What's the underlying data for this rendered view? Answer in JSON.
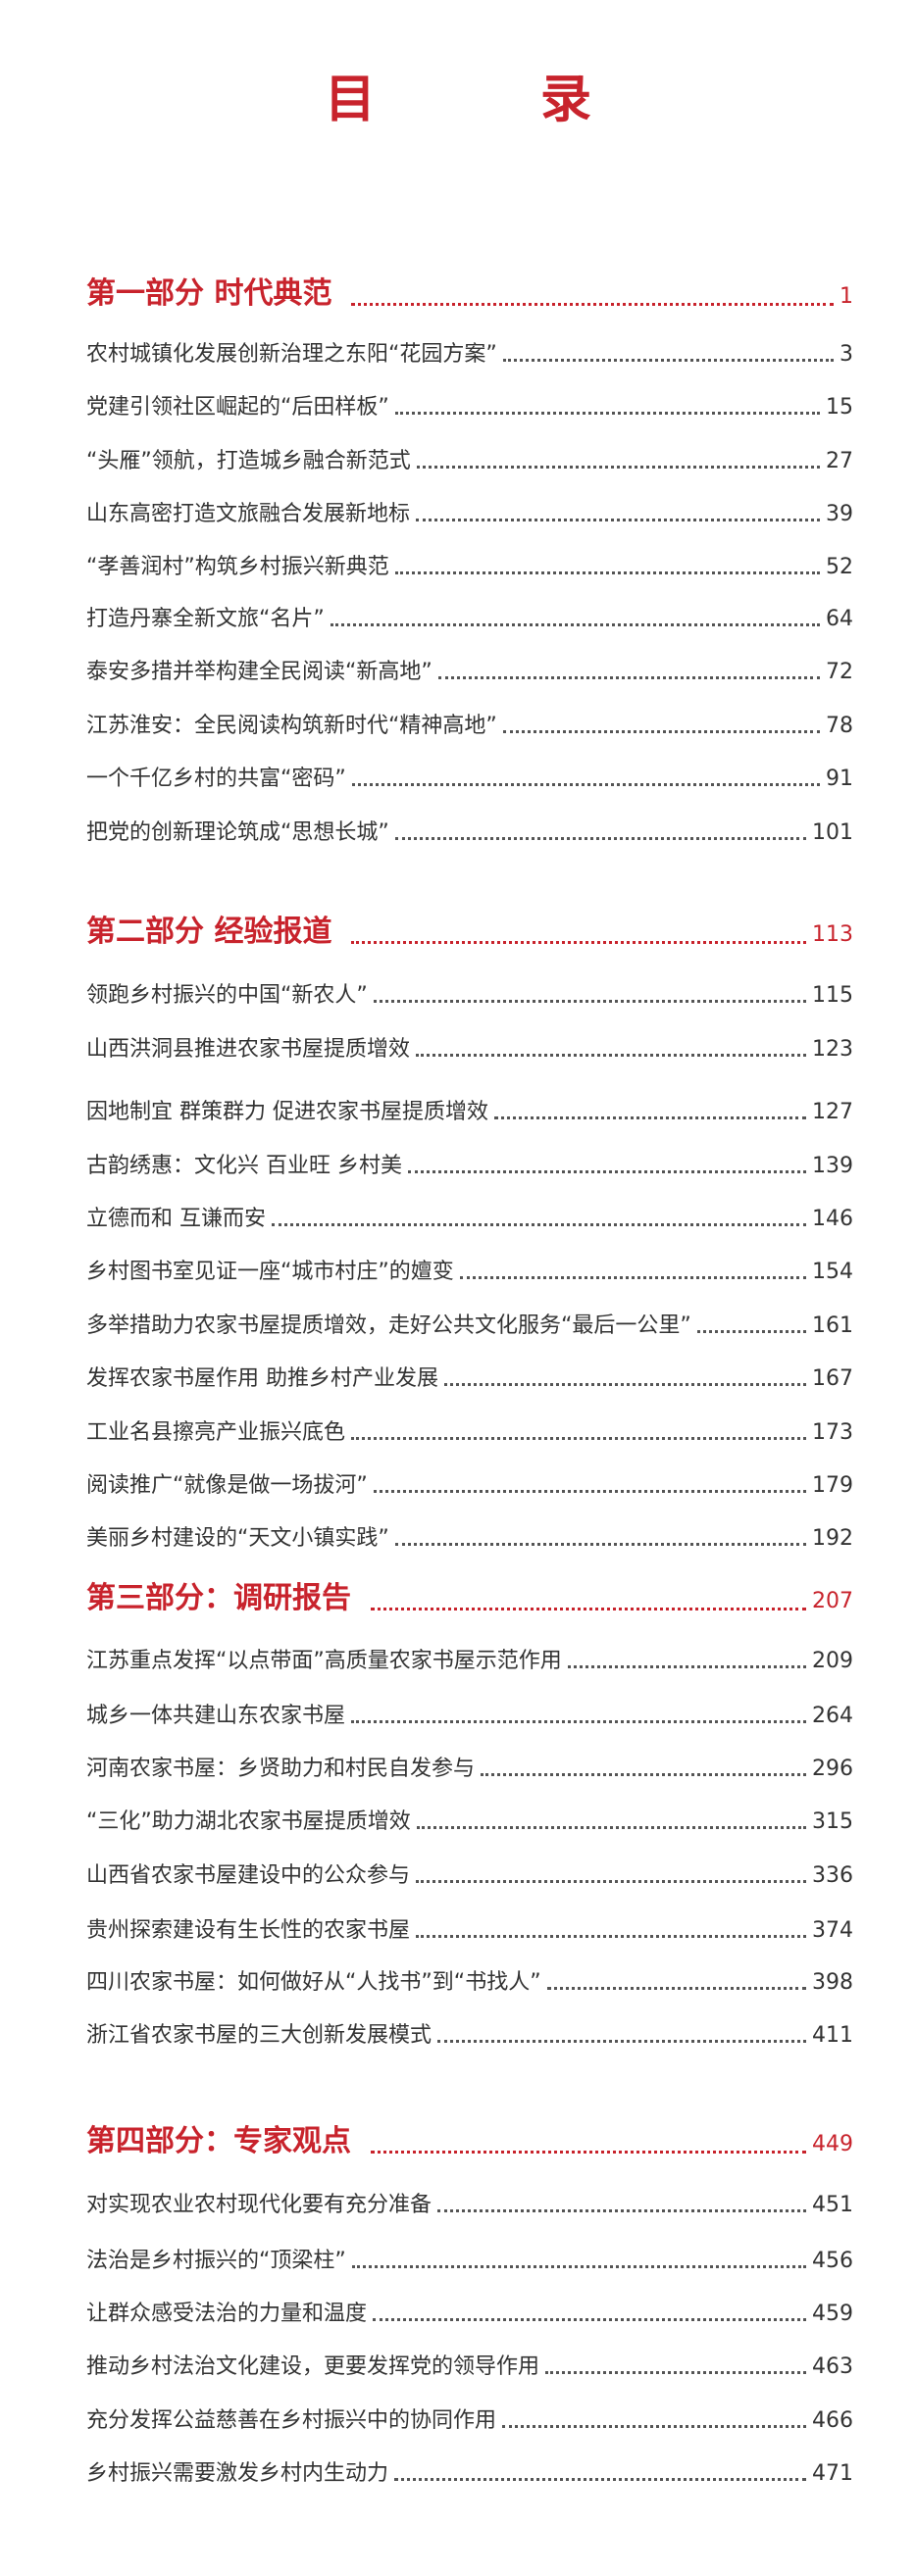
{
  "title": "目　录",
  "colors": {
    "accent": "#c8232c",
    "text": "#333333"
  },
  "sections": [
    {
      "heading": "第一部分 时代典范",
      "page": "1",
      "items": [
        {
          "label": "农村城镇化发展创新治理之东阳“花园方案”",
          "page": "3"
        },
        {
          "label": "党建引领社区崛起的“后田样板”",
          "page": "15"
        },
        {
          "label": "“头雁”领航，打造城乡融合新范式",
          "page": "27"
        },
        {
          "label": "山东高密打造文旅融合发展新地标",
          "page": "39"
        },
        {
          "label": "“孝善润村”构筑乡村振兴新典范",
          "page": "52"
        },
        {
          "label": "打造丹寨全新文旅“名片”",
          "page": "64"
        },
        {
          "label": "泰安多措并举构建全民阅读“新高地”",
          "page": "72"
        },
        {
          "label": "江苏淮安：全民阅读构筑新时代“精神高地”",
          "page": "78"
        },
        {
          "label": "一个千亿乡村的共富“密码”",
          "page": "91"
        },
        {
          "label": "把党的创新理论筑成“思想长城”",
          "page": "101"
        }
      ]
    },
    {
      "heading": "第二部分 经验报道",
      "page": "113",
      "items": [
        {
          "label": "领跑乡村振兴的中国“新农人”",
          "page": "115"
        },
        {
          "label": "山西洪洞县推进农家书屋提质增效",
          "page": "123"
        },
        {
          "label": "因地制宜 群策群力 促进农家书屋提质增效",
          "page": "127"
        },
        {
          "label": "古韵绣惠：文化兴 百业旺 乡村美",
          "page": "139"
        },
        {
          "label": "立德而和 互谦而安",
          "page": "146"
        },
        {
          "label": "乡村图书室见证一座“城市村庄”的嬗变",
          "page": "154"
        },
        {
          "label": "多举措助力农家书屋提质增效，走好公共文化服务“最后一公里”",
          "page": "161"
        },
        {
          "label": "发挥农家书屋作用 助推乡村产业发展",
          "page": "167"
        },
        {
          "label": "工业名县擦亮产业振兴底色",
          "page": "173"
        },
        {
          "label": "阅读推广“就像是做一场拔河”",
          "page": "179"
        },
        {
          "label": "美丽乡村建设的“天文小镇实践”",
          "page": "192"
        }
      ]
    },
    {
      "heading": "第三部分：调研报告",
      "page": "207",
      "items": [
        {
          "label": "江苏重点发挥“以点带面”高质量农家书屋示范作用",
          "page": "209"
        },
        {
          "label": "城乡一体共建山东农家书屋",
          "page": "264"
        },
        {
          "label": "河南农家书屋：乡贤助力和村民自发参与",
          "page": "296"
        },
        {
          "label": "“三化”助力湖北农家书屋提质增效",
          "page": "315"
        },
        {
          "label": "山西省农家书屋建设中的公众参与",
          "page": "336"
        },
        {
          "label": "贵州探索建设有生长性的农家书屋",
          "page": "374"
        },
        {
          "label": "四川农家书屋：如何做好从“人找书”到“书找人”",
          "page": "398"
        },
        {
          "label": "浙江省农家书屋的三大创新发展模式",
          "page": "411"
        }
      ]
    },
    {
      "heading": "第四部分：专家观点",
      "page": "449",
      "items": [
        {
          "label": "对实现农业农村现代化要有充分准备",
          "page": "451"
        },
        {
          "label": "法治是乡村振兴的“顶梁柱”",
          "page": "456"
        },
        {
          "label": "让群众感受法治的力量和温度",
          "page": "459"
        },
        {
          "label": "推动乡村法治文化建设，更要发挥党的领导作用",
          "page": "463"
        },
        {
          "label": "充分发挥公益慈善在乡村振兴中的协同作用",
          "page": "466"
        },
        {
          "label": "乡村振兴需要激发乡村内生动力",
          "page": "471"
        }
      ]
    }
  ]
}
